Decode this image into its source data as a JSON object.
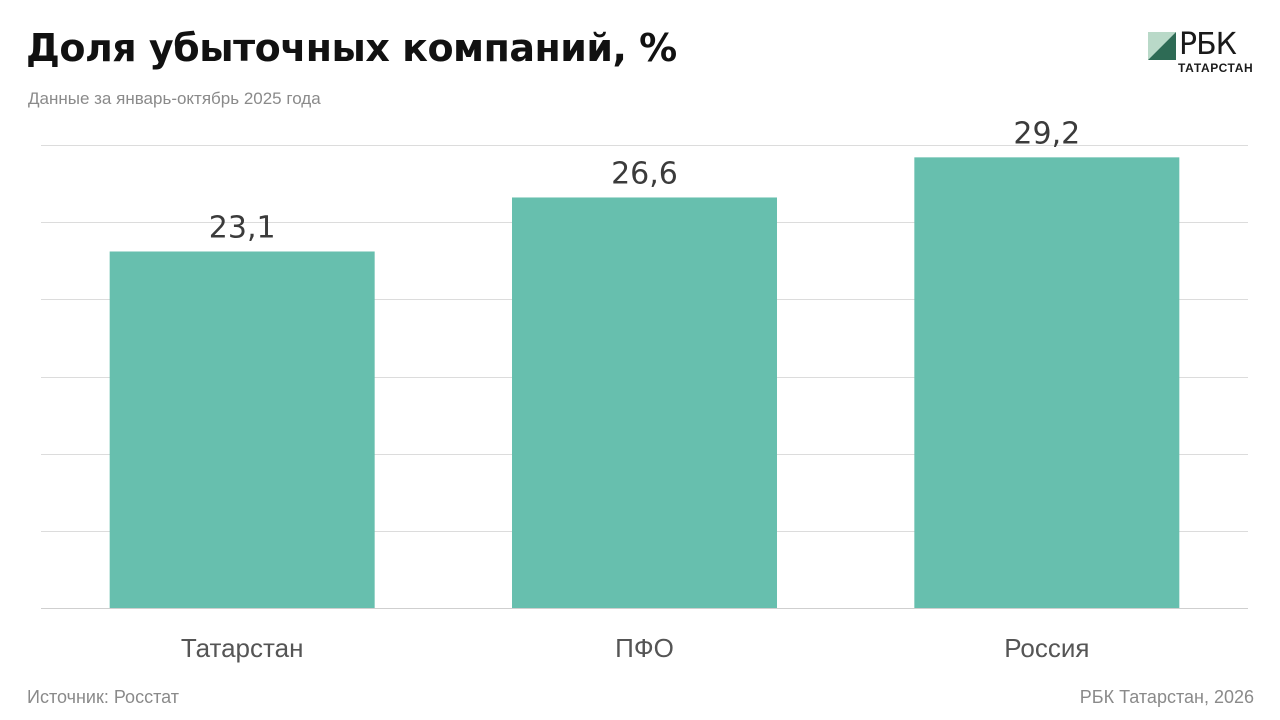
{
  "header": {
    "title": "Доля убыточных компаний, %",
    "subtitle": "Данные за январь-октябрь 2025 года"
  },
  "logo": {
    "name": "РБК",
    "sub": "ТАТАРСТАН"
  },
  "footer": {
    "source": "Источник: Росстат",
    "credit": "РБК Татарстан, 2026"
  },
  "colors": {
    "bar": "#67bfae",
    "logo_dark": "#2e6b55",
    "logo_light": "#b9d9c8"
  },
  "chart_data": {
    "type": "bar",
    "title": "Доля убыточных компаний, %",
    "subtitle": "Данные за январь-октябрь 2025 года",
    "categories": [
      "Татарстан",
      "ПФО",
      "Россия"
    ],
    "values": [
      23.1,
      26.6,
      29.2
    ],
    "value_labels": [
      "23,1",
      "26,6",
      "29,2"
    ],
    "ylim": [
      0,
      30
    ],
    "grid": true,
    "legend": "none"
  }
}
